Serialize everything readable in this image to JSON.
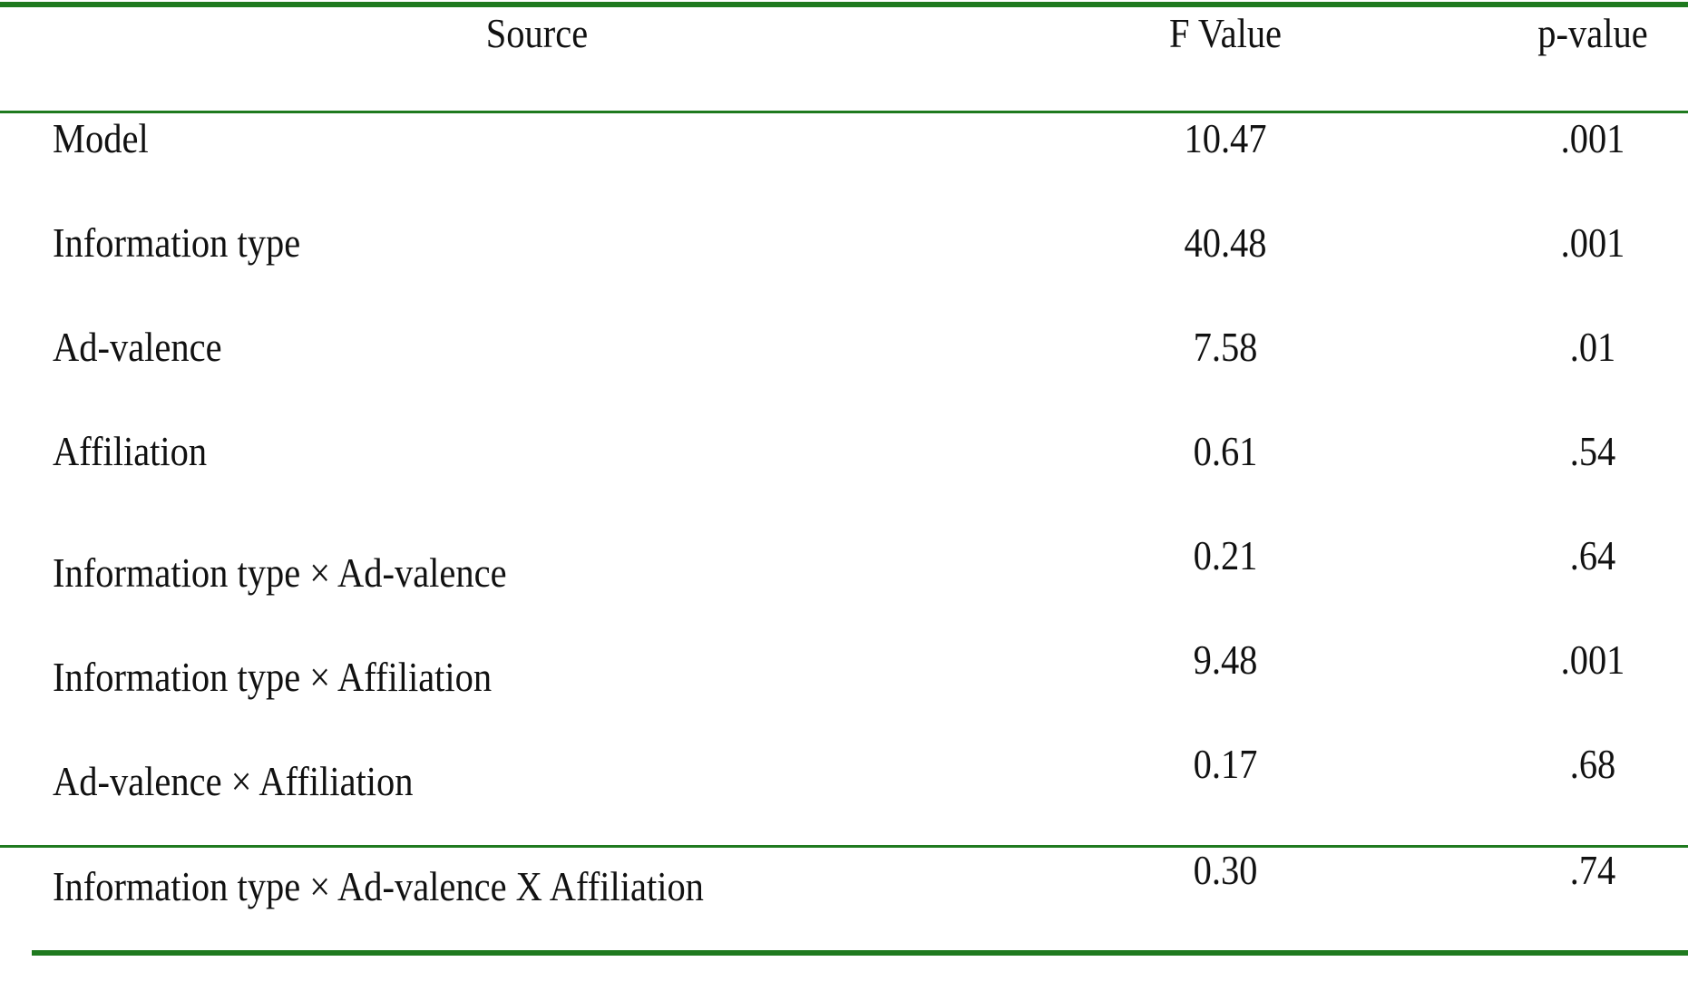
{
  "table": {
    "headers": {
      "source": "Source",
      "f_value": "F Value",
      "p_value": "p-value"
    },
    "rows": [
      {
        "source": "Model",
        "f_value": "10.47",
        "p_value": ".001"
      },
      {
        "source": "Information type",
        "f_value": "40.48",
        "p_value": ".001"
      },
      {
        "source": "Ad-valence",
        "f_value": "7.58",
        "p_value": ".01"
      },
      {
        "source": "Affiliation",
        "f_value": "0.61",
        "p_value": ".54"
      },
      {
        "source": "Information type × Ad-valence",
        "f_value": "0.21",
        "p_value": ".64"
      },
      {
        "source": "Information type × Affiliation",
        "f_value": "9.48",
        "p_value": ".001"
      },
      {
        "source": "Ad-valence × Affiliation",
        "f_value": "0.17",
        "p_value": ".68"
      },
      {
        "source": "Information type × Ad-valence X Affiliation",
        "f_value": "0.30",
        "p_value": ".74"
      }
    ],
    "rule_color": "#1f7a1f"
  }
}
